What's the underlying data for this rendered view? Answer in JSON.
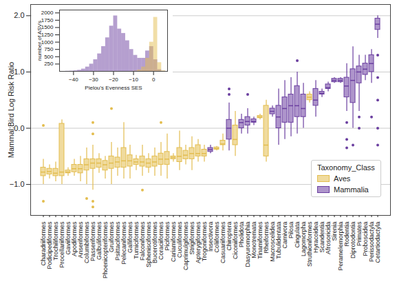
{
  "chart_data": [
    {
      "type": "box",
      "ylabel": "Mammal:Bird Log Risk Ratio",
      "legend_title": "Taxonomy_Class",
      "legend": "lower right",
      "grid": true,
      "ylim": [
        -1.55,
        2.2
      ],
      "yticks": [
        -1,
        0,
        1,
        2
      ],
      "categories": [
        "Charadriiformes",
        "Podicipediformes",
        "Trochiliformes",
        "Procellariiformes",
        "Gaviiformes",
        "Apodiformes",
        "Anseriformes",
        "Columbiformes",
        "Passeriformes",
        "Galbuliformes",
        "Phoenicopteriformes",
        "Gruiformes",
        "Psittaciformes",
        "Pelecaniformes",
        "Galliformes",
        "Turniciformes",
        "Falconiformes",
        "Sphenisciformes",
        "Bucerotiformes",
        "Coraciiformes",
        "Piciformes",
        "Cariamiformes",
        "Cuculiformes",
        "Caprimulgiformes",
        "Strigiformes",
        "Apterygiformes",
        "Trogoniformes",
        "Insectivora",
        "Coliiformes",
        "Casuariiformes",
        "Chiroptera",
        "Ciconiiformes",
        "Pholidota",
        "Dasyuromorphia",
        "Monotremata",
        "Tinamiformes",
        "Rheiformes",
        "Macroscelidea",
        "Tubulidentata",
        "Carnivora",
        "Pilosa",
        "Cingulata",
        "Lagomorpha",
        "Struthioniformes",
        "Hyracoidea",
        "Scandentia",
        "Afrosoricida",
        "Sirenia",
        "Peramelemorphia",
        "Rodentia",
        "Diprotodontia",
        "Primates",
        "Proboscidea",
        "Perissodactyla",
        "Cetartiodactyla"
      ],
      "series": [
        {
          "name": "Aves",
          "color": "#e3bd4f",
          "values": [
            {
              "whislo": -1.0,
              "q1": -0.85,
              "med": -0.78,
              "q3": -0.7,
              "whishi": -0.55,
              "fliers": [
                -1.3,
                0.05
              ]
            },
            {
              "whislo": -0.9,
              "q1": -0.82,
              "med": -0.77,
              "q3": -0.72,
              "whishi": -0.65
            },
            {
              "whislo": -0.95,
              "q1": -0.85,
              "med": -0.8,
              "q3": -0.72,
              "whishi": -0.6
            },
            {
              "whislo": -1.0,
              "q1": -0.85,
              "med": -0.78,
              "q3": 0.08,
              "whishi": 0.15
            },
            {
              "whislo": -0.85,
              "q1": -0.8,
              "med": -0.78,
              "q3": -0.75,
              "whishi": -0.7
            },
            {
              "whislo": -0.85,
              "q1": -0.78,
              "med": -0.72,
              "q3": -0.65,
              "whishi": -0.55
            },
            {
              "whislo": -0.95,
              "q1": -0.8,
              "med": -0.72,
              "q3": -0.65,
              "whishi": -0.5
            },
            {
              "whislo": -1.0,
              "q1": -0.75,
              "med": -0.65,
              "q3": -0.55,
              "whishi": -0.35,
              "fliers": [
                -1.25
              ]
            },
            {
              "whislo": -1.1,
              "q1": -0.72,
              "med": -0.62,
              "q3": -0.55,
              "whishi": -0.3,
              "fliers": [
                -1.4,
                -1.3,
                -0.1,
                0.1
              ]
            },
            {
              "whislo": -0.8,
              "q1": -0.7,
              "med": -0.62,
              "q3": -0.55,
              "whishi": -0.45
            },
            {
              "whislo": -0.9,
              "q1": -0.75,
              "med": -0.65,
              "q3": -0.58,
              "whishi": -0.5
            },
            {
              "whislo": -1.0,
              "q1": -0.72,
              "med": -0.62,
              "q3": -0.5,
              "whishi": -0.25,
              "fliers": [
                0.35
              ]
            },
            {
              "whislo": -0.85,
              "q1": -0.7,
              "med": -0.6,
              "q3": -0.52,
              "whishi": -0.35
            },
            {
              "whislo": -0.9,
              "q1": -0.7,
              "med": -0.58,
              "q3": -0.35,
              "whishi": 0.1
            },
            {
              "whislo": -0.9,
              "q1": -0.68,
              "med": -0.58,
              "q3": -0.48,
              "whishi": -0.3
            },
            {
              "whislo": -0.75,
              "q1": -0.65,
              "med": -0.6,
              "q3": -0.55,
              "whishi": -0.48
            },
            {
              "whislo": -0.85,
              "q1": -0.68,
              "med": -0.6,
              "q3": -0.5,
              "whishi": -0.3,
              "fliers": [
                -1.1
              ]
            },
            {
              "whislo": -0.8,
              "q1": -0.7,
              "med": -0.62,
              "q3": -0.55,
              "whishi": -0.45
            },
            {
              "whislo": -0.85,
              "q1": -0.68,
              "med": -0.6,
              "q3": -0.5,
              "whishi": -0.35
            },
            {
              "whislo": -0.85,
              "q1": -0.65,
              "med": -0.55,
              "q3": -0.45,
              "whishi": -0.25,
              "fliers": [
                0.1
              ]
            },
            {
              "whislo": -0.9,
              "q1": -0.65,
              "med": -0.55,
              "q3": -0.42,
              "whishi": -0.1
            },
            {
              "whislo": -0.6,
              "q1": -0.55,
              "med": -0.52,
              "q3": -0.5,
              "whishi": -0.45
            },
            {
              "whislo": -0.75,
              "q1": -0.6,
              "med": -0.5,
              "q3": -0.35,
              "whishi": -0.05
            },
            {
              "whislo": -0.65,
              "q1": -0.55,
              "med": -0.48,
              "q3": -0.4,
              "whishi": -0.3
            },
            {
              "whislo": -0.75,
              "q1": -0.55,
              "med": -0.45,
              "q3": -0.35,
              "whishi": -0.15
            },
            {
              "whislo": -0.6,
              "q1": -0.5,
              "med": -0.45,
              "q3": -0.3,
              "whishi": -0.2
            },
            {
              "whislo": -0.6,
              "q1": -0.5,
              "med": -0.45,
              "q3": -0.38,
              "whishi": -0.3
            },
            null,
            {
              "whislo": -0.4,
              "q1": -0.38,
              "med": -0.36,
              "q3": -0.34,
              "whishi": -0.32
            },
            {
              "whislo": -0.4,
              "q1": -0.3,
              "med": -0.28,
              "q3": -0.22,
              "whishi": -0.1
            },
            null,
            {
              "whislo": -0.5,
              "q1": -0.3,
              "med": -0.2,
              "q3": 0.05,
              "whishi": 0.3
            },
            null,
            null,
            null,
            {
              "whislo": 0.15,
              "q1": 0.18,
              "med": 0.2,
              "q3": 0.22,
              "whishi": 0.25
            },
            {
              "whislo": -0.6,
              "q1": -0.5,
              "med": -0.3,
              "q3": 0.4,
              "whishi": 0.5
            },
            null,
            null,
            null,
            null,
            null,
            null,
            {
              "whislo": 0.45,
              "q1": 0.5,
              "med": 0.55,
              "q3": 0.6,
              "whishi": 0.65
            },
            null,
            null,
            null,
            null,
            null,
            null,
            null,
            null,
            null,
            null,
            null
          ]
        },
        {
          "name": "Mammalia",
          "color": "#6b3fa0",
          "values": [
            null,
            null,
            null,
            null,
            null,
            null,
            null,
            null,
            null,
            null,
            null,
            null,
            null,
            null,
            null,
            null,
            null,
            null,
            null,
            null,
            null,
            null,
            null,
            null,
            null,
            null,
            null,
            {
              "whislo": -0.45,
              "q1": -0.42,
              "med": -0.38,
              "q3": -0.35,
              "whishi": -0.3
            },
            null,
            null,
            {
              "whislo": -0.4,
              "q1": -0.2,
              "med": 0.0,
              "q3": 0.15,
              "whishi": 0.45,
              "fliers": [
                0.6,
                0.7
              ]
            },
            null,
            {
              "whislo": -0.1,
              "q1": 0.0,
              "med": 0.1,
              "q3": 0.15,
              "whishi": 0.25
            },
            {
              "whislo": -0.1,
              "q1": 0.05,
              "med": 0.12,
              "q3": 0.2,
              "whishi": 0.35,
              "fliers": [
                0.6
              ]
            },
            {
              "whislo": 0.05,
              "q1": 0.1,
              "med": 0.12,
              "q3": 0.16,
              "whishi": 0.2
            },
            null,
            null,
            {
              "whislo": 0.2,
              "q1": 0.25,
              "med": 0.3,
              "q3": 0.35,
              "whishi": 0.4
            },
            {
              "whislo": -0.3,
              "q1": 0.0,
              "med": 0.2,
              "q3": 0.4,
              "whishi": 0.7
            },
            {
              "whislo": -0.2,
              "q1": 0.1,
              "med": 0.35,
              "q3": 0.55,
              "whishi": 0.85
            },
            {
              "whislo": -0.15,
              "q1": 0.1,
              "med": 0.4,
              "q3": 0.6,
              "whishi": 0.9
            },
            {
              "whislo": -0.1,
              "q1": 0.2,
              "med": 0.4,
              "q3": 0.75,
              "whishi": 1.0,
              "fliers": [
                1.2
              ]
            },
            {
              "whislo": 0.0,
              "q1": 0.2,
              "med": 0.35,
              "q3": 0.6,
              "whishi": 0.8
            },
            null,
            {
              "whislo": 0.2,
              "q1": 0.4,
              "med": 0.5,
              "q3": 0.7,
              "whishi": 0.85
            },
            {
              "whislo": 0.55,
              "q1": 0.6,
              "med": 0.62,
              "q3": 0.65,
              "whishi": 0.7
            },
            {
              "whislo": 0.65,
              "q1": 0.7,
              "med": 0.72,
              "q3": 0.78,
              "whishi": 0.82
            },
            {
              "whislo": 0.8,
              "q1": 0.82,
              "med": 0.85,
              "q3": 0.88,
              "whishi": 0.9
            },
            {
              "whislo": 0.8,
              "q1": 0.82,
              "med": 0.85,
              "q3": 0.88,
              "whishi": 0.9
            },
            {
              "whislo": 0.3,
              "q1": 0.55,
              "med": 0.75,
              "q3": 0.9,
              "whishi": 1.15,
              "fliers": [
                -0.35,
                -0.2,
                0.1
              ]
            },
            {
              "whislo": 0.0,
              "q1": 0.45,
              "med": 0.85,
              "q3": 1.05,
              "whishi": 1.45,
              "fliers": [
                -0.3
              ]
            },
            {
              "whislo": 0.3,
              "q1": 0.8,
              "med": 1.0,
              "q3": 1.1,
              "whishi": 1.3,
              "fliers": [
                0.2,
                0.0
              ]
            },
            {
              "whislo": 0.85,
              "q1": 0.95,
              "med": 1.05,
              "q3": 1.15,
              "whishi": 1.3
            },
            {
              "whislo": 0.8,
              "q1": 1.0,
              "med": 1.15,
              "q3": 1.3,
              "whishi": 1.4,
              "fliers": [
                0.2
              ]
            },
            {
              "whislo": 1.6,
              "q1": 1.75,
              "med": 1.85,
              "q3": 1.95,
              "whishi": 2.0,
              "fliers": [
                1.3,
                0.9,
                0.5,
                0.0,
                -0.3
              ]
            }
          ]
        }
      ]
    },
    {
      "type": "histogram",
      "xlabel": "Pielou's Evenness SES",
      "ylabel": "number of ASVs",
      "xlim": [
        -47,
        7
      ],
      "xticks": [
        -40,
        -30,
        -20,
        -10,
        0
      ],
      "ylim": [
        0,
        2100
      ],
      "yticks": [
        250,
        500,
        750,
        1000,
        1250,
        1500,
        1750,
        2000
      ],
      "bins": [
        -46,
        -44,
        -42,
        -40,
        -38,
        -36,
        -34,
        -32,
        -30,
        -28,
        -26,
        -24,
        -22,
        -20,
        -18,
        -16,
        -14,
        -12,
        -10,
        -8,
        -6,
        -4,
        -2,
        0,
        2,
        4,
        6
      ],
      "series": [
        {
          "name": "Mammalia",
          "color": "#6b3fa0",
          "values": [
            0,
            5,
            10,
            20,
            40,
            80,
            150,
            250,
            400,
            600,
            850,
            1150,
            1550,
            1900,
            1450,
            1300,
            1050,
            750,
            550,
            450,
            450,
            700,
            850,
            400,
            60,
            5
          ]
        },
        {
          "name": "Aves",
          "color": "#e3bd4f",
          "values": [
            0,
            0,
            0,
            0,
            0,
            0,
            0,
            0,
            0,
            0,
            0,
            0,
            0,
            0,
            0,
            0,
            0,
            0,
            10,
            50,
            150,
            450,
            1000,
            1850,
            300,
            20
          ]
        }
      ]
    }
  ]
}
